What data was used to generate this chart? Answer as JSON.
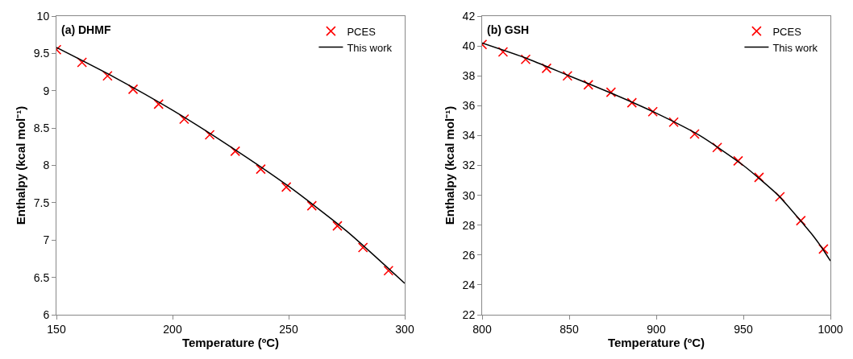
{
  "chart_data": [
    {
      "type": "line",
      "title": "(a) DHMF",
      "xlabel": "Temperature (ºC)",
      "ylabel": "Enthalpy (kcal mol⁻¹)",
      "xlim": [
        150,
        300
      ],
      "xticks": [
        150,
        200,
        250,
        300
      ],
      "ylim": [
        6,
        10
      ],
      "yticks": [
        6,
        6.5,
        7,
        7.5,
        8,
        8.5,
        9,
        9.5,
        10
      ],
      "legend": "top right",
      "series": [
        {
          "name": "PCES",
          "type": "scatter",
          "marker": "cross",
          "color": "#ff0000",
          "x": [
            150,
            161,
            172,
            183,
            194,
            205,
            216,
            227,
            238,
            249,
            260,
            271,
            282,
            293
          ],
          "values": [
            9.55,
            9.38,
            9.2,
            9.02,
            8.82,
            8.62,
            8.41,
            8.19,
            7.95,
            7.71,
            7.46,
            7.19,
            6.9,
            6.59
          ]
        },
        {
          "name": "This work",
          "marker": "none",
          "line_style": "solid",
          "color": "#000000",
          "x": [
            150,
            175,
            200,
            225,
            250,
            275,
            300
          ],
          "values": [
            9.58,
            9.18,
            8.74,
            8.25,
            7.72,
            7.12,
            6.42
          ]
        }
      ]
    },
    {
      "type": "line",
      "title": "(b) GSH",
      "xlabel": "Temperature (ºC)",
      "ylabel": "Enthalpy (kcal mol⁻¹)",
      "xlim": [
        800,
        1000
      ],
      "xticks": [
        800,
        850,
        900,
        950,
        1000
      ],
      "ylim": [
        22,
        42
      ],
      "yticks": [
        22,
        24,
        26,
        28,
        30,
        32,
        34,
        36,
        38,
        40,
        42
      ],
      "legend": "top right",
      "series": [
        {
          "name": "PCES",
          "type": "scatter",
          "marker": "cross",
          "color": "#ff0000",
          "x": [
            800,
            812,
            825,
            837,
            849,
            861,
            874,
            886,
            898,
            910,
            922,
            935,
            947,
            959,
            971,
            983,
            996
          ],
          "values": [
            40.1,
            39.6,
            39.1,
            38.5,
            38.0,
            37.4,
            36.9,
            36.2,
            35.6,
            34.9,
            34.1,
            33.2,
            32.3,
            31.2,
            29.9,
            28.3,
            26.4
          ]
        },
        {
          "name": "This work",
          "marker": "none",
          "line_style": "solid",
          "color": "#000000",
          "x": [
            800,
            825,
            850,
            875,
            900,
            925,
            950,
            970,
            985,
            990,
            995,
            1000
          ],
          "values": [
            40.2,
            39.2,
            38.0,
            36.8,
            35.5,
            34.0,
            32.0,
            30.0,
            28.0,
            27.3,
            26.5,
            25.6
          ]
        }
      ]
    }
  ]
}
